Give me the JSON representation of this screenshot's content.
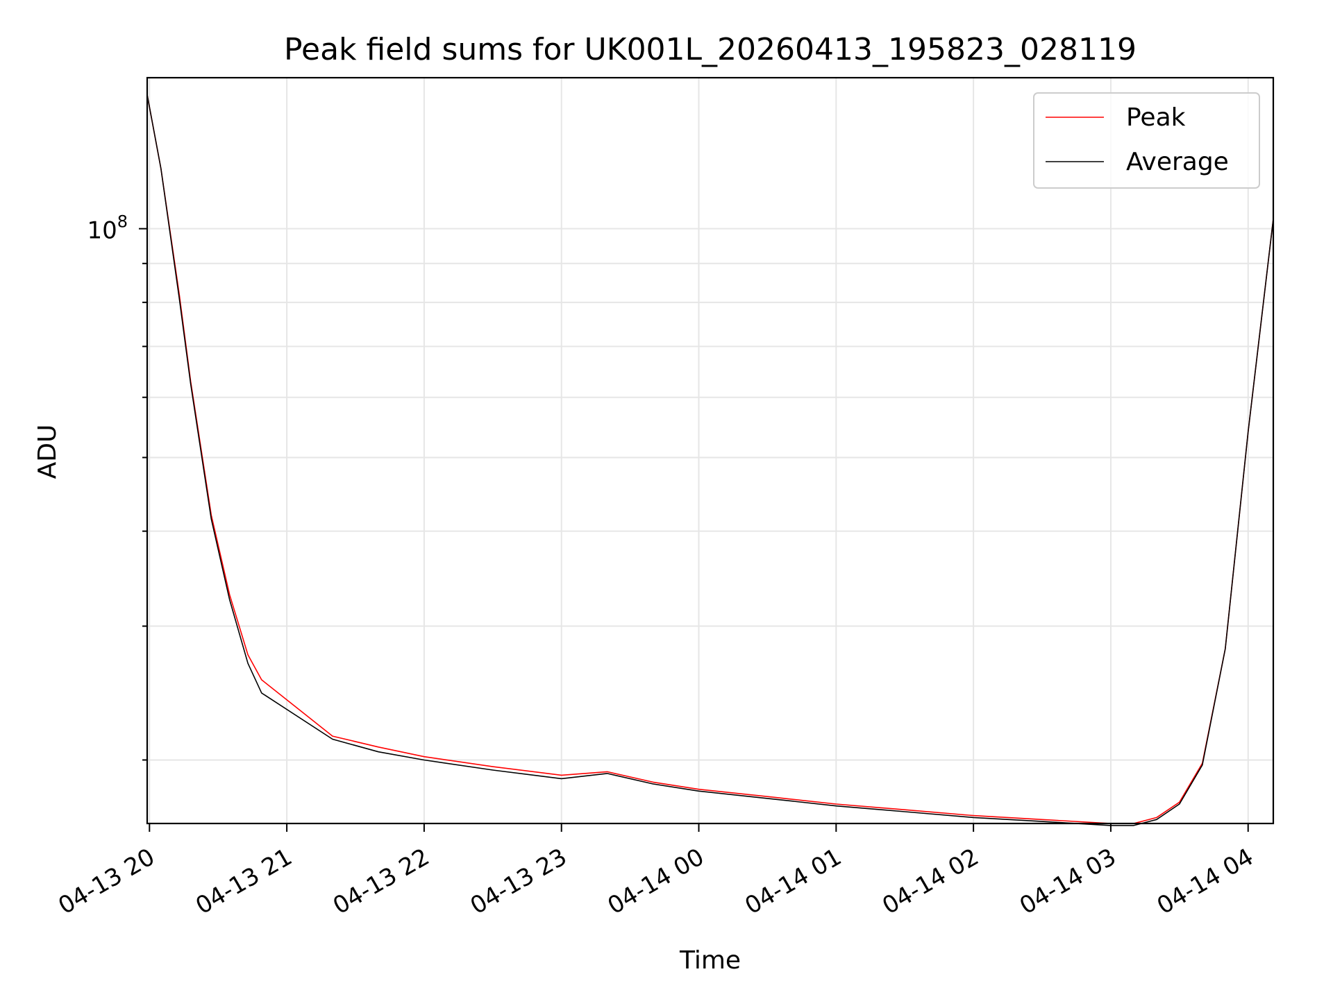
{
  "chart_data": {
    "type": "line",
    "title": "Peak field sums for UK001L_20260413_195823_028119",
    "xlabel": "Time",
    "ylabel": "ADU",
    "yscale": "log",
    "ylim": [
      16500000,
      158000000
    ],
    "xlim": [
      "2026-04-13 19:59",
      "2026-04-14 04:11"
    ],
    "grid": true,
    "legend_position": "upper right",
    "x_tick_labels": [
      "04-13 20",
      "04-13 21",
      "04-13 22",
      "04-13 23",
      "04-14 00",
      "04-14 01",
      "04-14 02",
      "04-14 03",
      "04-14 04"
    ],
    "y_tick_labels": [
      {
        "value": 100000000,
        "base": "10",
        "exponent": "8"
      }
    ],
    "series": [
      {
        "name": "Peak",
        "color": "#ff0000",
        "x": [
          "2026-04-13 19:59",
          "2026-04-13 20:05",
          "2026-04-13 20:13",
          "2026-04-13 20:18",
          "2026-04-13 20:27",
          "2026-04-13 20:35",
          "2026-04-13 20:43",
          "2026-04-13 20:49",
          "2026-04-13 21:20",
          "2026-04-13 21:40",
          "2026-04-13 22:00",
          "2026-04-13 22:30",
          "2026-04-13 23:00",
          "2026-04-13 23:20",
          "2026-04-13 23:40",
          "2026-04-14 00:00",
          "2026-04-14 00:30",
          "2026-04-14 01:00",
          "2026-04-14 01:30",
          "2026-04-14 02:00",
          "2026-04-14 02:30",
          "2026-04-14 03:00",
          "2026-04-14 03:10",
          "2026-04-14 03:20",
          "2026-04-14 03:30",
          "2026-04-14 03:40",
          "2026-04-14 03:50",
          "2026-04-14 04:00",
          "2026-04-14 04:11"
        ],
        "y": [
          150000000,
          120000000,
          82000000,
          63000000,
          42000000,
          33000000,
          27500000,
          25500000,
          21500000,
          20800000,
          20200000,
          19600000,
          19100000,
          19300000,
          18700000,
          18300000,
          17900000,
          17500000,
          17200000,
          16900000,
          16700000,
          16500000,
          16500000,
          16800000,
          17600000,
          19800000,
          28000000,
          54000000,
          103000000
        ]
      },
      {
        "name": "Average",
        "color": "#000000",
        "x": [
          "2026-04-13 19:59",
          "2026-04-13 20:05",
          "2026-04-13 20:13",
          "2026-04-13 20:18",
          "2026-04-13 20:27",
          "2026-04-13 20:35",
          "2026-04-13 20:43",
          "2026-04-13 20:49",
          "2026-04-13 21:20",
          "2026-04-13 21:40",
          "2026-04-13 22:00",
          "2026-04-13 22:30",
          "2026-04-13 23:00",
          "2026-04-13 23:20",
          "2026-04-13 23:40",
          "2026-04-14 00:00",
          "2026-04-14 00:30",
          "2026-04-14 01:00",
          "2026-04-14 01:30",
          "2026-04-14 02:00",
          "2026-04-14 02:30",
          "2026-04-14 03:00",
          "2026-04-14 03:10",
          "2026-04-14 03:20",
          "2026-04-14 03:30",
          "2026-04-14 03:40",
          "2026-04-14 03:50",
          "2026-04-14 04:00",
          "2026-04-14 04:11"
        ],
        "y": [
          150000000,
          120000000,
          81000000,
          62500000,
          41500000,
          32500000,
          26800000,
          24500000,
          21300000,
          20500000,
          20000000,
          19400000,
          18900000,
          19200000,
          18600000,
          18200000,
          17800000,
          17400000,
          17100000,
          16800000,
          16600000,
          16400000,
          16400000,
          16700000,
          17500000,
          19700000,
          28000000,
          54000000,
          103000000
        ]
      }
    ]
  }
}
